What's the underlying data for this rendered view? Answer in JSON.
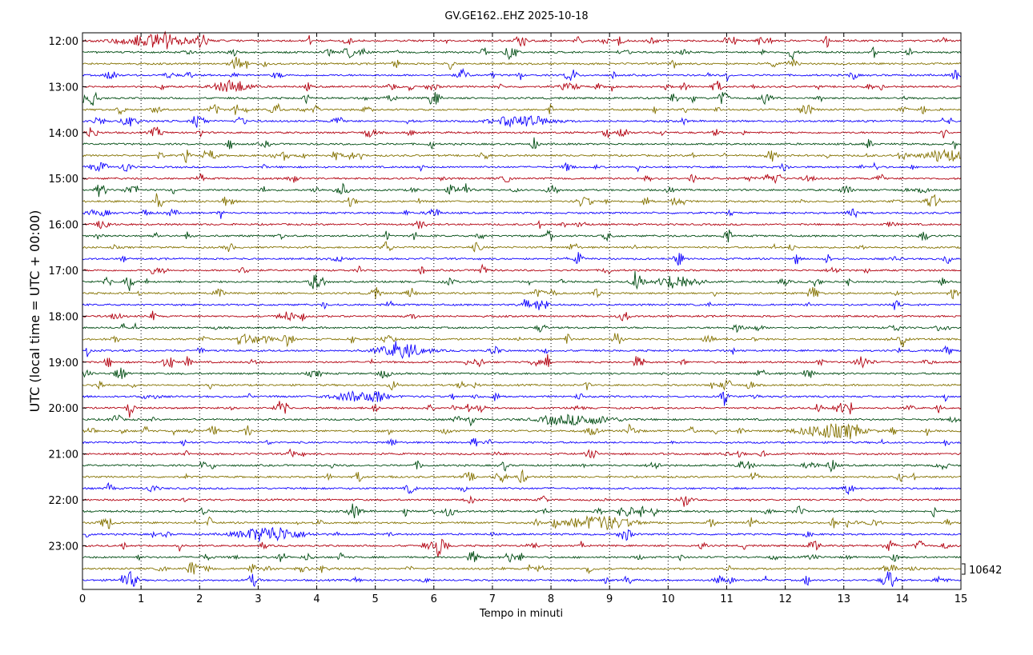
{
  "chart_data": {
    "type": "line",
    "title": "GV.GE162..EHZ 2025-10-18",
    "xlabel": "Tempo in minuti",
    "ylabel": "UTC (local time = UTC + 00:00)",
    "xlim": [
      0,
      15
    ],
    "x_ticks": [
      "0",
      "1",
      "2",
      "3",
      "4",
      "5",
      "6",
      "7",
      "8",
      "9",
      "10",
      "11",
      "12",
      "13",
      "14",
      "15"
    ],
    "x_grid": "dotted vertical line at every minute",
    "trace_interval_minutes": 15,
    "start_hour_utc": "12:00",
    "y_tick_labels": [
      "12:00",
      "13:00",
      "14:00",
      "15:00",
      "16:00",
      "17:00",
      "18:00",
      "19:00",
      "20:00",
      "21:00",
      "22:00",
      "23:00"
    ],
    "series_colors": [
      "#b2000f",
      "#004c12",
      "#847200",
      "#0e01ff"
    ],
    "scale_annotation": "10642",
    "traces_count": 48
  }
}
